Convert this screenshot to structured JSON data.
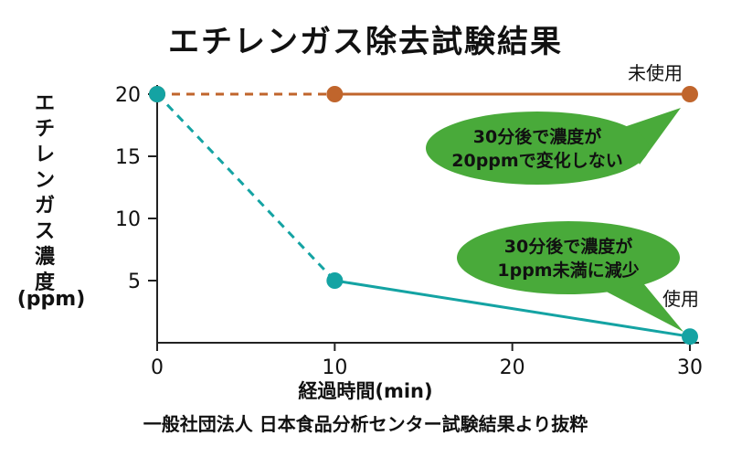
{
  "colors": {
    "unused": "#c0652c",
    "used": "#14a3a3",
    "bubble": "#49aa3a",
    "axis": "#222222"
  },
  "page": {
    "title": "エチレンガス除去試験結果",
    "ylabel": "エチレンガス濃度",
    "ylabel_unit": "(ppm)",
    "xlabel": "経過時間(min)",
    "source": "一般社団法人 日本食品分析センター試験結果より抜粋"
  },
  "chart_data": {
    "type": "line",
    "title": "エチレンガス除去試験結果",
    "xlabel": "経過時間(min)",
    "ylabel": "エチレンガス濃度 (ppm)",
    "x_ticks": [
      0,
      10,
      20,
      30
    ],
    "y_ticks": [
      5,
      10,
      15,
      20
    ],
    "xlim": [
      0,
      30
    ],
    "ylim": [
      0,
      20
    ],
    "grid": false,
    "series": [
      {
        "name": "未使用",
        "color": "#c0652c",
        "points": [
          {
            "x": 0,
            "y": 20
          },
          {
            "x": 10,
            "y": 20
          },
          {
            "x": 30,
            "y": 20
          }
        ],
        "dashed_segments": [
          0
        ]
      },
      {
        "name": "使用",
        "color": "#14a3a3",
        "points": [
          {
            "x": 0,
            "y": 20
          },
          {
            "x": 10,
            "y": 5
          },
          {
            "x": 30,
            "y": 0.5
          }
        ],
        "dashed_segments": [
          0
        ]
      }
    ],
    "annotations": [
      {
        "series": "未使用",
        "lines": [
          "30分後で濃度が",
          "20ppmで変化しない"
        ]
      },
      {
        "series": "使用",
        "lines": [
          "30分後で濃度が",
          "1ppm未満に減少"
        ]
      }
    ]
  }
}
